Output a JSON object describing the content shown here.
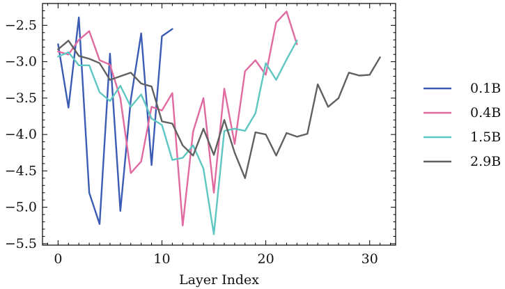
{
  "chart_data": {
    "type": "line",
    "title": "",
    "xlabel": "Layer Index",
    "ylabel": "",
    "xlim": [
      -1.5,
      32.5
    ],
    "ylim": [
      -5.52,
      -2.2
    ],
    "x_ticks": [
      0,
      10,
      20,
      30
    ],
    "x_tick_labels": [
      "0",
      "10",
      "20",
      "30"
    ],
    "y_ticks": [
      -2.5,
      -3.0,
      -3.5,
      -4.0,
      -4.5,
      -5.0,
      -5.5
    ],
    "y_tick_labels": [
      "−2.5",
      "−3.0",
      "−3.5",
      "−4.0",
      "−4.5",
      "−5.0",
      "−5.5"
    ],
    "grid": false,
    "legend_position": "right",
    "series": [
      {
        "name": "0.1B",
        "color": "#3b5bb5",
        "x": [
          0,
          1,
          2,
          3,
          4,
          5,
          6,
          7,
          8,
          9,
          10,
          11
        ],
        "y": [
          -2.76,
          -3.63,
          -2.39,
          -4.8,
          -5.23,
          -2.89,
          -5.05,
          -3.52,
          -2.61,
          -4.42,
          -2.65,
          -2.55
        ]
      },
      {
        "name": "0.4B",
        "color": "#e06aa0",
        "x": [
          0,
          1,
          2,
          3,
          4,
          5,
          6,
          7,
          8,
          9,
          10,
          11,
          12,
          13,
          14,
          15,
          16,
          17,
          18,
          19,
          20,
          21,
          22,
          23
        ],
        "y": [
          -2.86,
          -2.9,
          -2.7,
          -2.58,
          -2.98,
          -3.04,
          -3.5,
          -4.53,
          -4.37,
          -3.62,
          -3.67,
          -3.43,
          -5.25,
          -3.96,
          -3.5,
          -4.8,
          -3.37,
          -4.13,
          -3.13,
          -2.98,
          -3.18,
          -2.46,
          -2.31,
          -2.76
        ]
      },
      {
        "name": "1.5B",
        "color": "#5ec7c2",
        "x": [
          0,
          1,
          2,
          3,
          4,
          5,
          6,
          7,
          8,
          9,
          10,
          11,
          12,
          13,
          14,
          15,
          16,
          17,
          18,
          19,
          20,
          21,
          22,
          23
        ],
        "y": [
          -2.93,
          -2.87,
          -3.05,
          -3.05,
          -3.42,
          -3.54,
          -3.33,
          -3.62,
          -3.45,
          -3.78,
          -3.87,
          -4.35,
          -4.32,
          -4.15,
          -4.47,
          -5.37,
          -3.95,
          -3.92,
          -3.95,
          -3.71,
          -3.02,
          -3.25,
          -2.97,
          -2.71
        ]
      },
      {
        "name": "2.9B",
        "color": "#606060",
        "x": [
          0,
          1,
          2,
          3,
          4,
          5,
          6,
          7,
          8,
          9,
          10,
          11,
          12,
          13,
          14,
          15,
          16,
          17,
          18,
          19,
          20,
          21,
          22,
          23,
          24,
          25,
          26,
          27,
          28,
          29,
          30,
          31
        ],
        "y": [
          -2.83,
          -2.71,
          -2.92,
          -2.96,
          -3.02,
          -3.25,
          -3.2,
          -3.15,
          -3.3,
          -3.34,
          -3.82,
          -3.85,
          -4.15,
          -4.29,
          -3.92,
          -4.28,
          -3.8,
          -4.25,
          -4.6,
          -3.97,
          -4.0,
          -4.29,
          -3.98,
          -4.03,
          -3.99,
          -3.31,
          -3.62,
          -3.5,
          -3.15,
          -3.19,
          -3.18,
          -2.94
        ]
      }
    ]
  }
}
